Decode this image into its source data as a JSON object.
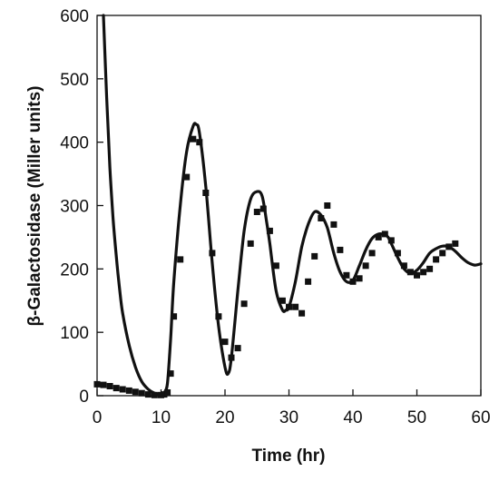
{
  "chart_data": {
    "type": "line",
    "title": "",
    "xlabel": "Time (hr)",
    "ylabel": "β-Galactosidase (Miller units)",
    "xlim": [
      0,
      60
    ],
    "ylim": [
      0,
      600
    ],
    "x_ticks": [
      0,
      10,
      20,
      30,
      40,
      50,
      60
    ],
    "y_ticks": [
      0,
      100,
      200,
      300,
      400,
      500,
      600
    ],
    "x_tick_labels": [
      "0",
      "10",
      "20",
      "30",
      "40",
      "50",
      "60"
    ],
    "y_tick_labels": [
      "0",
      "100",
      "200",
      "300",
      "400",
      "500",
      "600"
    ],
    "grid": false,
    "legend": "none",
    "series": [
      {
        "style": "line",
        "color": "#111111",
        "x": [
          1.0,
          1.5,
          2.0,
          2.5,
          3.0,
          3.5,
          4.0,
          5.0,
          6.0,
          7.0,
          8.0,
          9.0,
          10.0,
          10.5,
          11.0,
          11.5,
          12.0,
          13.0,
          14.0,
          15.0,
          15.5,
          16.0,
          17.0,
          18.0,
          19.0,
          20.0,
          20.5,
          21.0,
          22.0,
          23.0,
          24.0,
          25.0,
          25.8,
          26.5,
          27.0,
          28.0,
          29.0,
          29.5,
          30.0,
          31.0,
          32.0,
          33.0,
          34.0,
          35.0,
          36.0,
          37.0,
          38.0,
          39.0,
          40.0,
          41.0,
          42.0,
          43.0,
          44.0,
          45.0,
          45.5,
          46.0,
          47.0,
          48.0,
          49.0,
          50.0,
          51.0,
          52.0,
          53.0,
          54.0,
          55.0,
          56.0,
          57.0,
          58.0,
          59.0,
          60.0
        ],
        "y": [
          600,
          470,
          360,
          280,
          220,
          170,
          130,
          80,
          45,
          22,
          10,
          4,
          2,
          5,
          20,
          90,
          180,
          300,
          385,
          425,
          428,
          415,
          330,
          210,
          110,
          45,
          35,
          60,
          165,
          260,
          310,
          322,
          315,
          275,
          240,
          165,
          135,
          135,
          140,
          180,
          235,
          270,
          290,
          285,
          265,
          225,
          195,
          180,
          182,
          205,
          230,
          248,
          255,
          254,
          250,
          240,
          218,
          200,
          193,
          198,
          210,
          225,
          232,
          236,
          235,
          228,
          218,
          210,
          206,
          208
        ]
      },
      {
        "style": "markers",
        "marker": "square",
        "color": "#111111",
        "x": [
          0,
          1,
          2,
          3,
          4,
          5,
          6,
          7,
          8,
          9,
          10,
          10.5,
          11,
          11.5,
          12,
          13,
          14,
          15,
          16,
          17,
          18,
          19,
          20,
          21,
          22,
          23,
          24,
          25,
          26,
          27,
          28,
          29,
          30,
          31,
          32,
          33,
          34,
          35,
          36,
          37,
          38,
          39,
          40,
          41,
          42,
          43,
          44,
          45,
          46,
          47,
          48,
          49,
          50,
          51,
          52,
          53,
          54,
          55,
          56
        ],
        "y": [
          18,
          17,
          15,
          12,
          10,
          8,
          6,
          4,
          2,
          1,
          1,
          2,
          5,
          35,
          125,
          215,
          345,
          405,
          400,
          320,
          225,
          125,
          85,
          60,
          75,
          145,
          240,
          290,
          295,
          260,
          205,
          150,
          140,
          140,
          130,
          180,
          220,
          280,
          300,
          270,
          230,
          190,
          180,
          185,
          205,
          225,
          250,
          255,
          245,
          225,
          205,
          195,
          190,
          195,
          200,
          215,
          225,
          235,
          240
        ]
      }
    ]
  }
}
